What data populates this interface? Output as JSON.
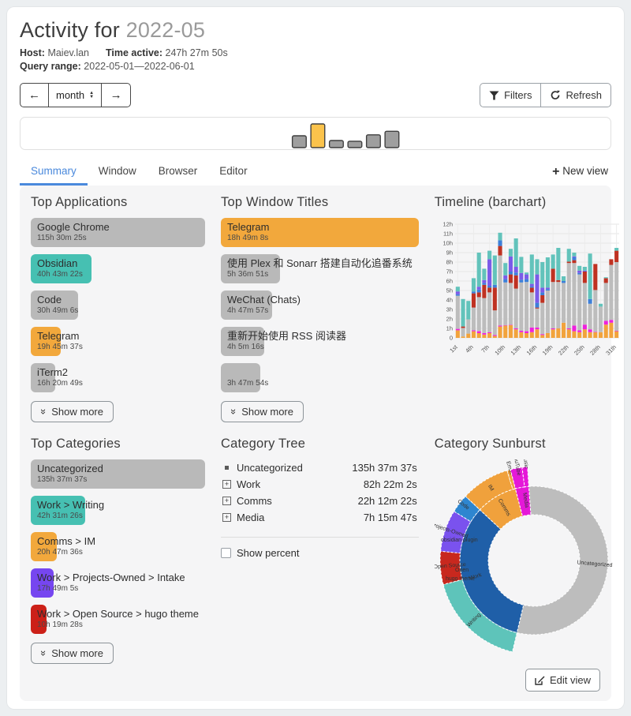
{
  "header": {
    "title_prefix": "Activity for ",
    "title_period": "2022-05",
    "host_label": "Host:",
    "host_value": "Maiev.lan",
    "time_active_label": "Time active:",
    "time_active_value": "247h 27m 50s",
    "query_range_label": "Query range:",
    "query_range_value": "2022-05-01—2022-06-01"
  },
  "nav": {
    "prev_arrow": "←",
    "next_arrow": "→",
    "period_selected": "month",
    "filters_label": "Filters",
    "refresh_label": "Refresh"
  },
  "overview_chart": {
    "type": "bar",
    "values": [
      50,
      100,
      30,
      27,
      54,
      69
    ],
    "highlight_index": 1,
    "bar_color": "#9e9e9e",
    "highlight_color": "#fbc34c",
    "border_color": "#3f3f3f"
  },
  "tabs": [
    {
      "label": "Summary",
      "active": true
    },
    {
      "label": "Window",
      "active": false
    },
    {
      "label": "Browser",
      "active": false
    },
    {
      "label": "Editor",
      "active": false
    }
  ],
  "new_view": {
    "plus": "+",
    "label": " New view"
  },
  "show_more_label": "Show more",
  "panels": {
    "top_applications": {
      "title": "Top Applications",
      "items": [
        {
          "label": "Google Chrome",
          "duration": "115h 30m 25s",
          "color": "#b9b9b9",
          "pct": 100
        },
        {
          "label": "Obsidian",
          "duration": "40h 43m 22s",
          "color": "#46c0b2",
          "pct": 35
        },
        {
          "label": "Code",
          "duration": "30h 49m 6s",
          "color": "#b9b9b9",
          "pct": 27
        },
        {
          "label": "Telegram",
          "duration": "19h 45m 37s",
          "color": "#f2a83c",
          "pct": 17
        },
        {
          "label": "iTerm2",
          "duration": "16h 20m 49s",
          "color": "#b9b9b9",
          "pct": 14
        }
      ]
    },
    "top_window_titles": {
      "title": "Top Window Titles",
      "items": [
        {
          "label": "Telegram",
          "duration": "18h 49m 8s",
          "color": "#f2a83c",
          "pct": 100
        },
        {
          "label": "使用 Plex 和 Sonarr 搭建自动化追番系统",
          "duration": "5h 36m 51s",
          "color": "#b9b9b9",
          "pct": 30
        },
        {
          "label": "WeChat (Chats)",
          "duration": "4h 47m 57s",
          "color": "#b9b9b9",
          "pct": 26
        },
        {
          "label": "重新开始使用 RSS 阅读器",
          "duration": "4h 5m 16s",
          "color": "#b9b9b9",
          "pct": 22
        },
        {
          "label": "",
          "duration": "3h 47m 54s",
          "color": "#b9b9b9",
          "pct": 20
        }
      ]
    },
    "timeline": {
      "title": "Timeline (barchart)",
      "chart_data": {
        "type": "bar",
        "stacked": true,
        "ylabel": "",
        "ylim": [
          0,
          12
        ],
        "y_ticks": [
          "0",
          "1h",
          "2h",
          "3h",
          "4h",
          "5h",
          "6h",
          "7h",
          "8h",
          "9h",
          "10h",
          "11h",
          "12h"
        ],
        "x_tick_days": [
          1,
          4,
          7,
          10,
          13,
          16,
          19,
          22,
          25,
          28,
          31
        ],
        "x_tick_labels": [
          "1st",
          "4th",
          "7th",
          "10th",
          "13th",
          "16th",
          "19th",
          "22th",
          "25th",
          "28th",
          "31th"
        ],
        "segment_names": [
          "orange",
          "magenta",
          "gray",
          "red",
          "blue",
          "purple",
          "teal"
        ],
        "segment_colors": [
          "#f2a33c",
          "#ee21dd",
          "#bdbdbd",
          "#bf3222",
          "#3d7fd9",
          "#7b5be8",
          "#62c3bb"
        ],
        "days_hours": [
          [
            0.8,
            0.15,
            3.5,
            0,
            0.15,
            0.3,
            0.5
          ],
          [
            0.15,
            0,
            0.9,
            0.15,
            0,
            0,
            2.9
          ],
          [
            0.45,
            0,
            1.5,
            0,
            0,
            0,
            1.95
          ],
          [
            0.7,
            0.1,
            2.4,
            1.5,
            0.2,
            0,
            1.4
          ],
          [
            0.5,
            0.2,
            3.6,
            0.5,
            0.3,
            0.3,
            3.6
          ],
          [
            0.35,
            0.15,
            3.7,
            1.4,
            0.2,
            0.3,
            1.2
          ],
          [
            0.5,
            0.1,
            4.2,
            0.5,
            0.2,
            2.8,
            0.9
          ],
          [
            0.2,
            0.1,
            2.6,
            2.4,
            0.3,
            0,
            3.1
          ],
          [
            1.2,
            0.1,
            7.4,
            1.0,
            0.6,
            0,
            0.8
          ],
          [
            1.3,
            0.05,
            4.5,
            0,
            0.35,
            0.4,
            1.3
          ],
          [
            1.35,
            0.05,
            4.4,
            0.9,
            0.3,
            1.6,
            0.8
          ],
          [
            0.9,
            0.1,
            4.2,
            1.4,
            0.3,
            0.6,
            3.0
          ],
          [
            0.6,
            0.15,
            5.1,
            0,
            0.3,
            0.7,
            1.7
          ],
          [
            0.5,
            0.2,
            5.2,
            0,
            0.3,
            0.5,
            0.2
          ],
          [
            0.6,
            0.5,
            3.7,
            0.5,
            0.15,
            0.25,
            3.1
          ],
          [
            0.9,
            0.2,
            2.0,
            0.1,
            0.5,
            3.0,
            1.6
          ],
          [
            0.3,
            0.1,
            3.3,
            0.8,
            0.3,
            0.5,
            2.7
          ],
          [
            0.5,
            0,
            4.5,
            0,
            0.15,
            0.15,
            3.2
          ],
          [
            0.9,
            0.1,
            4.9,
            1.4,
            0,
            0,
            1.5
          ],
          [
            1.0,
            0,
            4.9,
            0.2,
            0,
            0,
            3.4
          ],
          [
            1.6,
            0,
            4.2,
            0,
            0.2,
            0,
            0.5
          ],
          [
            0.9,
            0.1,
            6.9,
            0.15,
            0,
            0,
            1.35
          ],
          [
            0.7,
            0.6,
            6.6,
            0.3,
            0.3,
            0.1,
            0.4
          ],
          [
            0.6,
            0.2,
            5.9,
            0,
            0.15,
            0.25,
            0.5
          ],
          [
            0.9,
            0.5,
            4.4,
            1.2,
            0,
            0.1,
            0.4
          ],
          [
            0.6,
            0.3,
            2.7,
            0,
            0.5,
            0,
            4.8
          ],
          [
            0.6,
            0.05,
            4.4,
            2.75,
            0,
            0,
            0
          ],
          [
            0.6,
            0,
            2.7,
            0,
            0,
            0,
            0.3
          ],
          [
            1.4,
            0.4,
            4.0,
            0.5,
            0,
            0,
            0.1
          ],
          [
            1.6,
            0.3,
            5.8,
            0.6,
            0,
            0,
            0
          ],
          [
            0.7,
            0.05,
            7.25,
            1.2,
            0,
            0,
            0.3
          ]
        ]
      }
    },
    "top_categories": {
      "title": "Top Categories",
      "items": [
        {
          "label": "Uncategorized",
          "duration": "135h 37m 37s",
          "color": "#b9b9b9",
          "pct": 100
        },
        {
          "label": "Work > Writing",
          "duration": "42h 31m 26s",
          "color": "#46c0b2",
          "pct": 31
        },
        {
          "label": "Comms > IM",
          "duration": "20h 47m 36s",
          "color": "#f2a83c",
          "pct": 15
        },
        {
          "label": "Work > Projects-Owned > Intake",
          "duration": "17h 49m 5s",
          "color": "#7646f0",
          "pct": 13
        },
        {
          "label": "Work > Open Source > hugo theme",
          "duration": "10h 19m 28s",
          "color": "#cc2018",
          "pct": 9
        }
      ]
    },
    "category_tree": {
      "title": "Category Tree",
      "rows": [
        {
          "icon": "leaf",
          "name": "Uncategorized",
          "duration": "135h 37m 37s"
        },
        {
          "icon": "plus",
          "name": "Work",
          "duration": "82h 22m 2s"
        },
        {
          "icon": "plus",
          "name": "Comms",
          "duration": "22h 12m 22s"
        },
        {
          "icon": "plus",
          "name": "Media",
          "duration": "7h 15m 47s"
        }
      ],
      "show_percent_label": "Show percent"
    },
    "sunburst": {
      "title": "Category Sunburst",
      "chart_data": {
        "type": "pie",
        "start_angle_deg": -4,
        "inner_ring": [
          {
            "name": "Uncategorized",
            "hours": 135.63,
            "color": "#bdbdbd",
            "label_r": 77
          },
          {
            "name": "Work",
            "hours": 82.37,
            "color": "#1f5fa8",
            "label_r": 77
          },
          {
            "name": "Comms",
            "hours": 22.21,
            "color": "#f0a13c",
            "label_r": 77
          },
          {
            "name": "Media",
            "hours": 7.26,
            "color": "#e518d8",
            "label_r": 77
          }
        ],
        "outer_ring": [
          {
            "name": "",
            "hours": 135.63,
            "color": "none",
            "label_r": 0
          },
          {
            "name": "Writing",
            "hours": 42.52,
            "color": "#5ec4ba",
            "label_r": 107
          },
          {
            "name": "Open Source",
            "hours": 14.1,
            "color": "#c8281e",
            "label_r": 107
          },
          {
            "name": "Projects-Owned",
            "hours": 17.82,
            "color": "#7a52ee",
            "label_r": 114
          },
          {
            "name": "Code",
            "hours": 7.93,
            "color": "#2e86d0",
            "label_r": 114
          },
          {
            "name": "IM",
            "hours": 20.79,
            "color": "#f0a13c",
            "label_r": 107
          },
          {
            "name": "Email",
            "hours": 1.42,
            "color": "#f0a13c",
            "label_r": 121
          },
          {
            "name": "YouTube",
            "hours": 5.0,
            "color": "#e518d8",
            "label_r": 123
          },
          {
            "name": "Music",
            "hours": 2.26,
            "color": "#e518d8",
            "label_r": 126
          }
        ],
        "extra_labels": [
          {
            "text": "obsidian plugin",
            "x": 8,
            "y": 104
          },
          {
            "text": "Open",
            "x": 26,
            "y": 142
          },
          {
            "text": "hugo theme",
            "x": 14,
            "y": 153
          }
        ]
      }
    }
  },
  "edit_view_label": "Edit view"
}
